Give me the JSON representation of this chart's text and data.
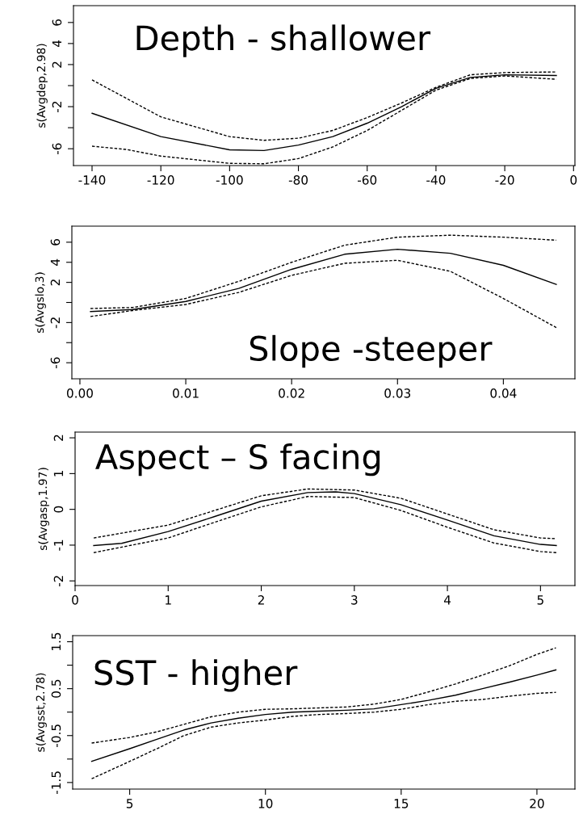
{
  "chart_data": [
    {
      "type": "line",
      "ylabel": "s(Avgdep,2.98)",
      "annotations": [
        "Depth - shallower"
      ],
      "xlim": [
        -145.4,
        0.4
      ],
      "ylim": [
        -7.6,
        7.6
      ],
      "xticks": [
        -140,
        -120,
        -100,
        -80,
        -60,
        -40,
        -20,
        0
      ],
      "yticks": [
        -6,
        {
          "value": -4,
          "label": null
        },
        -2,
        {
          "value": 0,
          "label": null
        },
        2,
        4,
        6
      ],
      "grid": false,
      "legend": false,
      "series": [
        {
          "color": "#000000",
          "line_style": "solid",
          "x": [
            -140,
            -120,
            -100,
            -90,
            -80,
            -70,
            -60,
            -50,
            -40,
            -30,
            -20,
            -5
          ],
          "values": [
            -2.63,
            -4.85,
            -6.1,
            -6.17,
            -5.65,
            -4.85,
            -3.57,
            -2.0,
            -0.26,
            0.78,
            1.03,
            0.96
          ]
        },
        {
          "color": "#000000",
          "line_style": "dashed",
          "x": [
            -140,
            -120,
            -100,
            -90,
            -80,
            -70,
            -60,
            -50,
            -40,
            -30,
            -20,
            -5
          ],
          "values": [
            0.54,
            -2.97,
            -4.85,
            -5.2,
            -5.0,
            -4.26,
            -3.04,
            -1.65,
            -0.16,
            1.03,
            1.24,
            1.3
          ]
        },
        {
          "color": "#000000",
          "line_style": "dashed",
          "x": [
            -140,
            -130,
            -120,
            -100,
            -90,
            -80,
            -70,
            -60,
            -50,
            -40,
            -30,
            -20,
            -5
          ],
          "values": [
            -5.76,
            -6.07,
            -6.7,
            -7.39,
            -7.43,
            -6.94,
            -5.83,
            -4.26,
            -2.35,
            -0.43,
            0.68,
            0.92,
            0.6
          ]
        }
      ]
    },
    {
      "type": "line",
      "ylabel": "s(Avgslo,3)",
      "annotations": [
        "Slope -steeper"
      ],
      "xlim": [
        -0.00076,
        0.04676
      ],
      "ylim": [
        -7.6,
        7.6
      ],
      "xticks": [
        {
          "value": 0,
          "label": "0.00"
        },
        0.01,
        0.02,
        0.03,
        0.04
      ],
      "yticks": [
        -6,
        {
          "value": -4,
          "label": null
        },
        -2,
        {
          "value": 0,
          "label": null
        },
        2,
        4,
        6
      ],
      "grid": false,
      "legend": false,
      "series": [
        {
          "color": "#000000",
          "line_style": "solid",
          "x": [
            0.001,
            0.005,
            0.01,
            0.015,
            0.02,
            0.025,
            0.03,
            0.035,
            0.04,
            0.045
          ],
          "values": [
            -0.9,
            -0.7,
            0.1,
            1.4,
            3.3,
            4.8,
            5.3,
            4.9,
            3.7,
            1.8
          ]
        },
        {
          "color": "#000000",
          "line_style": "dashed",
          "x": [
            0.001,
            0.005,
            0.01,
            0.015,
            0.02,
            0.025,
            0.03,
            0.035,
            0.04,
            0.045
          ],
          "values": [
            -0.6,
            -0.5,
            0.4,
            2.1,
            4.0,
            5.7,
            6.5,
            6.7,
            6.5,
            6.2
          ]
        },
        {
          "color": "#000000",
          "line_style": "dashed",
          "x": [
            0.001,
            0.005,
            0.01,
            0.015,
            0.02,
            0.025,
            0.03,
            0.035,
            0.04,
            0.045
          ],
          "values": [
            -1.4,
            -0.8,
            -0.2,
            1.0,
            2.7,
            3.9,
            4.2,
            3.1,
            0.4,
            -2.5
          ]
        }
      ]
    },
    {
      "type": "line",
      "ylabel": "s(Avgasp,1.97)",
      "annotations": [
        "Aspect – S facing"
      ],
      "xlim": [
        0.0,
        5.37
      ],
      "ylim": [
        -2.13,
        2.16
      ],
      "xticks": [
        0,
        1,
        2,
        3,
        4,
        5
      ],
      "yticks": [
        -2,
        -1,
        0,
        1,
        2
      ],
      "grid": false,
      "legend": false,
      "series": [
        {
          "color": "#000000",
          "line_style": "solid",
          "x": [
            0.2,
            0.5,
            1,
            1.5,
            2,
            2.5,
            2.8,
            3,
            3.5,
            4,
            4.5,
            5,
            5.17
          ],
          "values": [
            -1.01,
            -0.95,
            -0.62,
            -0.2,
            0.23,
            0.47,
            0.49,
            0.44,
            0.13,
            -0.3,
            -0.74,
            -0.98,
            -1.01
          ]
        },
        {
          "color": "#000000",
          "line_style": "dashed",
          "x": [
            0.2,
            1,
            1.5,
            2,
            2.5,
            3,
            3.5,
            4,
            4.5,
            5,
            5.17
          ],
          "values": [
            -0.8,
            -0.44,
            -0.03,
            0.38,
            0.57,
            0.54,
            0.31,
            -0.13,
            -0.57,
            -0.8,
            -0.82
          ]
        },
        {
          "color": "#000000",
          "line_style": "dashed",
          "x": [
            0.2,
            1,
            1.5,
            2,
            2.5,
            3,
            3.5,
            4,
            4.5,
            5,
            5.17
          ],
          "values": [
            -1.21,
            -0.8,
            -0.36,
            0.07,
            0.36,
            0.33,
            -0.03,
            -0.5,
            -0.94,
            -1.18,
            -1.21
          ]
        }
      ]
    },
    {
      "type": "line",
      "ylabel": "s(Avgsst,2.78)",
      "annotations": [
        "SST - higher"
      ],
      "xlim": [
        2.9,
        21.4
      ],
      "ylim": [
        -1.64,
        1.63
      ],
      "xticks": [
        5,
        10,
        15,
        20
      ],
      "yticks": [
        -1.5,
        {
          "value": -1,
          "label": null
        },
        -0.5,
        {
          "value": 0,
          "label": null
        },
        0.5,
        {
          "value": 1,
          "label": null
        },
        1.5
      ],
      "grid": false,
      "legend": false,
      "series": [
        {
          "color": "#000000",
          "line_style": "solid",
          "x": [
            3.6,
            5,
            6,
            7,
            8,
            9,
            10,
            11,
            12,
            13,
            14,
            15,
            16,
            17,
            18,
            19,
            20,
            20.7
          ],
          "values": [
            -1.05,
            -0.78,
            -0.58,
            -0.38,
            -0.23,
            -0.13,
            -0.05,
            0.0,
            0.02,
            0.04,
            0.07,
            0.16,
            0.25,
            0.36,
            0.5,
            0.64,
            0.79,
            0.9
          ]
        },
        {
          "color": "#000000",
          "line_style": "dashed",
          "x": [
            3.6,
            5,
            6,
            7,
            8,
            9,
            10,
            11,
            12,
            13,
            14,
            15,
            16,
            17,
            18,
            19,
            20,
            20.7
          ],
          "values": [
            -0.66,
            -0.54,
            -0.42,
            -0.26,
            -0.1,
            0.0,
            0.06,
            0.07,
            0.09,
            0.11,
            0.17,
            0.27,
            0.43,
            0.6,
            0.79,
            0.99,
            1.23,
            1.37
          ]
        },
        {
          "color": "#000000",
          "line_style": "dashed",
          "x": [
            3.6,
            5,
            6,
            7,
            8,
            9,
            10,
            11,
            12,
            13,
            14,
            15,
            16,
            17,
            18,
            19,
            20,
            20.7
          ],
          "values": [
            -1.42,
            -1.05,
            -0.78,
            -0.5,
            -0.32,
            -0.23,
            -0.17,
            -0.09,
            -0.05,
            -0.03,
            0.0,
            0.06,
            0.16,
            0.23,
            0.27,
            0.34,
            0.4,
            0.42
          ]
        }
      ]
    }
  ]
}
